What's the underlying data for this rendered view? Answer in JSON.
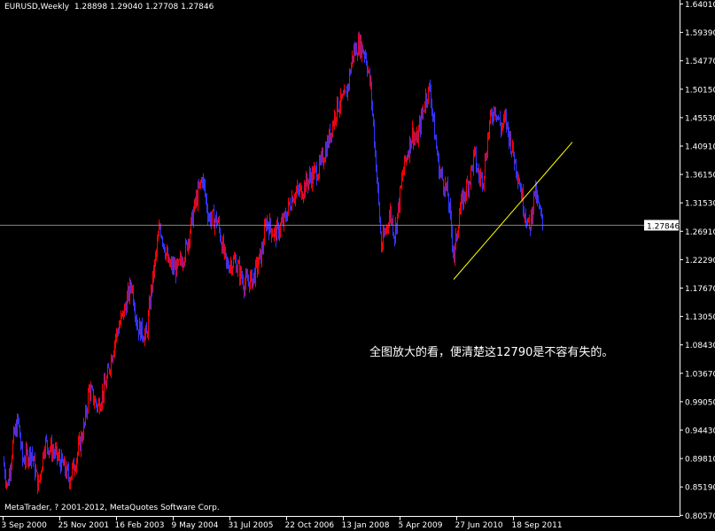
{
  "header": {
    "symbol": "EURUSD,Weekly",
    "open": "1.28898",
    "high": "1.29040",
    "low": "1.27708",
    "close": "1.27846"
  },
  "footer": {
    "copyright": "MetaTrader, ? 2001-2012, MetaQuotes Software Corp."
  },
  "annotation": "全图放大的看，便清楚这12790是不容有失的。",
  "colors": {
    "background": "#000000",
    "bull_bar": "#ff0000",
    "bear_bar": "#3333ff",
    "trendline": "#ffff00",
    "price_line": "#808080",
    "axis": "#ffffff"
  },
  "chart_data": {
    "type": "ohlc-bar",
    "title": "EURUSD,Weekly",
    "ylim": [
      0.8057,
      1.6401
    ],
    "y_ticks": [
      "1.64010",
      "1.59390",
      "1.54770",
      "1.50150",
      "1.45530",
      "1.40910",
      "1.36150",
      "1.31530",
      "1.26910",
      "1.22290",
      "1.17670",
      "1.13050",
      "1.08430",
      "1.03670",
      "0.99050",
      "0.94430",
      "0.89810",
      "0.85190",
      "0.80570"
    ],
    "x_ticks": [
      {
        "date": "2000-09-03",
        "label": "3 Sep 2000"
      },
      {
        "date": "2001-11-25",
        "label": "25 Nov 2001"
      },
      {
        "date": "2003-02-16",
        "label": "16 Feb 2003"
      },
      {
        "date": "2004-05-09",
        "label": "9 May 2004"
      },
      {
        "date": "2005-07-31",
        "label": "31 Jul 2005"
      },
      {
        "date": "2006-10-22",
        "label": "22 Oct 2006"
      },
      {
        "date": "2008-01-13",
        "label": "13 Jan 2008"
      },
      {
        "date": "2009-04-05",
        "label": "5 Apr 2009"
      },
      {
        "date": "2010-06-27",
        "label": "27 Jun 2010"
      },
      {
        "date": "2011-09-18",
        "label": "18 Sep 2011"
      }
    ],
    "current_price": "1.27846",
    "trendline": {
      "start": {
        "date": "2010-06-06",
        "price": 1.19
      },
      "end": {
        "date": "2012-12-30",
        "price": 1.414
      }
    },
    "close_path": [
      [
        "2000-09-03",
        0.895
      ],
      [
        "2000-10-08",
        0.852
      ],
      [
        "2000-11-26",
        0.931
      ],
      [
        "2000-12-31",
        0.96
      ],
      [
        "2001-02-04",
        0.895
      ],
      [
        "2001-04-15",
        0.909
      ],
      [
        "2001-06-10",
        0.852
      ],
      [
        "2001-07-29",
        0.924
      ],
      [
        "2001-10-07",
        0.909
      ],
      [
        "2001-12-16",
        0.888
      ],
      [
        "2002-02-10",
        0.866
      ],
      [
        "2002-03-31",
        0.895
      ],
      [
        "2002-06-09",
        0.953
      ],
      [
        "2002-07-14",
        1.011
      ],
      [
        "2002-09-22",
        0.982
      ],
      [
        "2002-12-01",
        1.025
      ],
      [
        "2003-02-09",
        1.097
      ],
      [
        "2003-04-20",
        1.14
      ],
      [
        "2003-06-15",
        1.184
      ],
      [
        "2003-08-03",
        1.112
      ],
      [
        "2003-10-12",
        1.097
      ],
      [
        "2003-11-16",
        1.169
      ],
      [
        "2004-01-25",
        1.278
      ],
      [
        "2004-04-04",
        1.213
      ],
      [
        "2004-06-13",
        1.206
      ],
      [
        "2004-08-22",
        1.242
      ],
      [
        "2004-10-31",
        1.314
      ],
      [
        "2004-12-26",
        1.357
      ],
      [
        "2005-02-13",
        1.292
      ],
      [
        "2005-04-24",
        1.285
      ],
      [
        "2005-07-03",
        1.213
      ],
      [
        "2005-09-11",
        1.22
      ],
      [
        "2005-11-20",
        1.184
      ],
      [
        "2006-01-29",
        1.191
      ],
      [
        "2006-04-09",
        1.234
      ],
      [
        "2006-05-14",
        1.285
      ],
      [
        "2006-07-23",
        1.263
      ],
      [
        "2006-10-01",
        1.285
      ],
      [
        "2006-12-10",
        1.328
      ],
      [
        "2007-02-18",
        1.335
      ],
      [
        "2007-04-29",
        1.357
      ],
      [
        "2007-07-08",
        1.371
      ],
      [
        "2007-09-16",
        1.415
      ],
      [
        "2007-11-25",
        1.473
      ],
      [
        "2008-02-03",
        1.487
      ],
      [
        "2008-03-30",
        1.559
      ],
      [
        "2008-05-18",
        1.574
      ],
      [
        "2008-07-06",
        1.559
      ],
      [
        "2008-08-17",
        1.502
      ],
      [
        "2008-10-05",
        1.357
      ],
      [
        "2008-11-09",
        1.242
      ],
      [
        "2009-01-18",
        1.299
      ],
      [
        "2009-02-22",
        1.263
      ],
      [
        "2009-05-03",
        1.371
      ],
      [
        "2009-07-12",
        1.429
      ],
      [
        "2009-08-16",
        1.415
      ],
      [
        "2009-10-25",
        1.487
      ],
      [
        "2009-11-29",
        1.502
      ],
      [
        "2010-01-03",
        1.429
      ],
      [
        "2010-02-07",
        1.371
      ],
      [
        "2010-04-18",
        1.328
      ],
      [
        "2010-06-06",
        1.227
      ],
      [
        "2010-07-18",
        1.299
      ],
      [
        "2010-09-05",
        1.335
      ],
      [
        "2010-10-10",
        1.357
      ],
      [
        "2010-11-14",
        1.393
      ],
      [
        "2010-12-19",
        1.357
      ],
      [
        "2011-01-23",
        1.357
      ],
      [
        "2011-03-13",
        1.444
      ],
      [
        "2011-04-24",
        1.473
      ],
      [
        "2011-06-12",
        1.437
      ],
      [
        "2011-07-17",
        1.451
      ],
      [
        "2011-09-11",
        1.4
      ],
      [
        "2011-10-30",
        1.357
      ],
      [
        "2011-12-04",
        1.314
      ],
      [
        "2012-01-22",
        1.27
      ],
      [
        "2012-03-04",
        1.335
      ],
      [
        "2012-05-06",
        1.27846
      ]
    ]
  }
}
